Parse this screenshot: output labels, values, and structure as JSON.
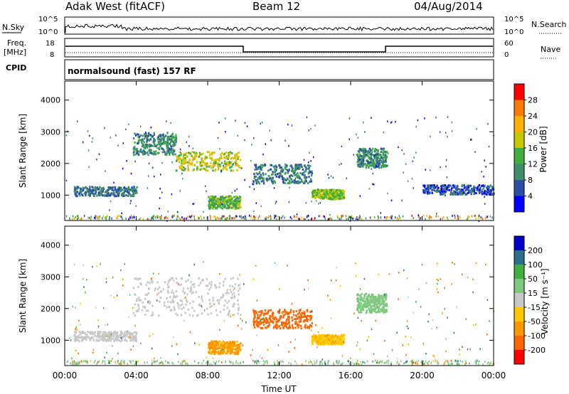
{
  "header": {
    "station": "Adak West (fitACF)",
    "beam": "Beam 12",
    "date": "04/Aug/2014"
  },
  "top_panels": {
    "nsky_label": "N.Sky",
    "nsky_ticks": [
      "10^5",
      "10^0"
    ],
    "nsearch_label": "N.Search",
    "nsearch_ticks": [
      "10^5",
      "10^0"
    ],
    "freq_label_line1": "Freq.",
    "freq_label_line2": "[MHz]",
    "freq_ticks": [
      "18",
      "8"
    ],
    "nave_label": "Nave",
    "nave_ticks": [
      "60",
      "0"
    ],
    "cpid_label": "CPID",
    "cpid_text": "normalsound (fast) 157 RF"
  },
  "colors": {
    "power_scale": [
      "#0000ff",
      "#2b4fa8",
      "#3f8f6a",
      "#3fae3f",
      "#c8c800",
      "#ffb000",
      "#ff7a00",
      "#ff0000"
    ],
    "velocity_scale": [
      "#ff0000",
      "#ff6400",
      "#ff9600",
      "#ffc800",
      "#c8c8c8",
      "#7fc97f",
      "#3faf3f",
      "#2b6f8f",
      "#0000c8"
    ],
    "ground_scatter": "#a0a0a0"
  },
  "chart_data": [
    {
      "type": "heatmap",
      "panel": "power",
      "ylabel": "Slant Range [km]",
      "yticks": [
        "1000",
        "2000",
        "3000",
        "4000"
      ],
      "ylim": [
        200,
        4600
      ],
      "xlim": [
        0,
        24
      ],
      "colorbar_label": "Power [dB]",
      "colorbar_ticks": [
        "4",
        "8",
        "12",
        "16",
        "20",
        "24",
        "28"
      ],
      "features": [
        {
          "t0": 3.8,
          "t1": 6.2,
          "r0": 2300,
          "r1": 3000,
          "v": 10
        },
        {
          "t0": 6.2,
          "t1": 9.8,
          "r0": 1800,
          "r1": 2400,
          "v": 18
        },
        {
          "t0": 10.5,
          "t1": 13.8,
          "r0": 1400,
          "r1": 2000,
          "v": 9
        },
        {
          "t0": 13.8,
          "t1": 15.6,
          "r0": 900,
          "r1": 1200,
          "v": 16
        },
        {
          "t0": 16.3,
          "t1": 18.0,
          "r0": 1900,
          "r1": 2500,
          "v": 10
        },
        {
          "t0": 0.5,
          "t1": 4.0,
          "r0": 1000,
          "r1": 1300,
          "v": 8
        },
        {
          "t0": 8.0,
          "t1": 9.8,
          "r0": 600,
          "r1": 1000,
          "v": 14
        },
        {
          "t0": 20.0,
          "t1": 24.0,
          "r0": 1050,
          "r1": 1350,
          "v": 6
        }
      ]
    },
    {
      "type": "heatmap",
      "panel": "velocity",
      "ylabel": "Slant Range [km]",
      "yticks": [
        "1000",
        "2000",
        "3000",
        "4000"
      ],
      "ylim": [
        200,
        4600
      ],
      "xlim": [
        0,
        24
      ],
      "xticks": [
        "00:00",
        "04:00",
        "08:00",
        "12:00",
        "16:00",
        "20:00",
        "00:00"
      ],
      "xlabel": "Time UT",
      "colorbar_label": "Velocity [m s⁻¹]",
      "colorbar_ticks": [
        "200",
        "100",
        "50",
        "15",
        "-15",
        "-50",
        "-100",
        "-200"
      ],
      "features": [
        {
          "t0": 3.8,
          "t1": 9.8,
          "r0": 1800,
          "r1": 3000,
          "v": 0
        },
        {
          "t0": 10.5,
          "t1": 13.8,
          "r0": 1400,
          "r1": 2000,
          "v": -150
        },
        {
          "t0": 8.0,
          "t1": 9.8,
          "r0": 600,
          "r1": 1000,
          "v": -60
        },
        {
          "t0": 13.8,
          "t1": 15.6,
          "r0": 900,
          "r1": 1200,
          "v": -40
        },
        {
          "t0": 16.3,
          "t1": 18.0,
          "r0": 1900,
          "r1": 2500,
          "v": 30
        },
        {
          "t0": 0.5,
          "t1": 4.0,
          "r0": 1000,
          "r1": 1300,
          "v": 0
        }
      ]
    }
  ]
}
